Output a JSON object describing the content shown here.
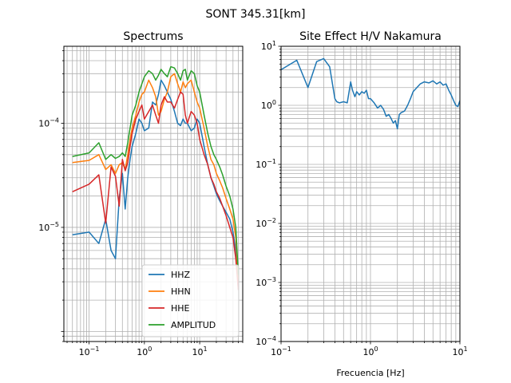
{
  "figure": {
    "title": "SONT 345.31[km]"
  },
  "chart_data": [
    {
      "type": "line",
      "title": "Spectrums",
      "xlabel": "",
      "ylabel": "",
      "xscale": "log",
      "yscale": "log",
      "xlim": [
        0.035,
        60
      ],
      "ylim": [
        8e-07,
        0.00055
      ],
      "grid": true,
      "legend_position": "lower-right",
      "x_tick_labels": [
        {
          "value": 0.1,
          "mantissa": "10",
          "exp": "−1"
        },
        {
          "value": 1,
          "mantissa": "10",
          "exp": "0"
        },
        {
          "value": 10,
          "mantissa": "10",
          "exp": "1"
        }
      ],
      "y_tick_labels": [
        {
          "value": 1e-05,
          "mantissa": "10",
          "exp": "−5"
        },
        {
          "value": 0.0001,
          "mantissa": "10",
          "exp": "−4"
        }
      ],
      "series": [
        {
          "name": "HHZ",
          "color": "#1f77b4",
          "x": [
            0.05,
            0.1,
            0.15,
            0.2,
            0.25,
            0.3,
            0.35,
            0.4,
            0.45,
            0.5,
            0.55,
            0.6,
            0.7,
            0.8,
            0.9,
            1.0,
            1.2,
            1.4,
            1.6,
            1.8,
            2.0,
            2.3,
            2.6,
            3.0,
            3.5,
            4.0,
            4.5,
            5.0,
            5.5,
            6.0,
            7.0,
            8.0,
            9.0,
            10,
            12,
            14,
            16,
            18,
            20,
            23,
            26,
            30,
            35,
            40,
            45,
            50
          ],
          "y": [
            8.5e-06,
            9e-06,
            7e-06,
            1.2e-05,
            6e-06,
            5e-06,
            1.9e-05,
            3.3e-05,
            1.5e-05,
            3e-05,
            4.5e-05,
            6e-05,
            8e-05,
            0.00011,
            0.0001,
            8.5e-05,
            9e-05,
            0.00016,
            0.00015,
            0.00019,
            0.00026,
            0.00023,
            0.0002,
            0.00017,
            0.00013,
            0.0001,
            9.5e-05,
            0.00011,
            0.0001,
            0.0001,
            8.5e-05,
            9e-05,
            0.00011,
            0.0001,
            6e-05,
            4e-05,
            3e-05,
            2.5e-05,
            2.1e-05,
            1.8e-05,
            1.6e-05,
            1.4e-05,
            1.2e-05,
            9e-06,
            6e-06,
            2.5e-06
          ]
        },
        {
          "name": "HHN",
          "color": "#ff7f0e",
          "x": [
            0.05,
            0.1,
            0.15,
            0.2,
            0.25,
            0.3,
            0.35,
            0.4,
            0.45,
            0.5,
            0.55,
            0.6,
            0.7,
            0.8,
            0.9,
            1.0,
            1.2,
            1.4,
            1.6,
            1.8,
            2.0,
            2.3,
            2.6,
            3.0,
            3.5,
            4.0,
            4.5,
            5.0,
            5.5,
            6.0,
            7.0,
            8.0,
            9.0,
            10,
            12,
            14,
            16,
            18,
            20,
            23,
            26,
            30,
            35,
            40,
            45,
            50
          ],
          "y": [
            4.2e-05,
            4.4e-05,
            5e-05,
            3.6e-05,
            4e-05,
            3.3e-05,
            4e-05,
            4.2e-05,
            3.6e-05,
            5e-05,
            7e-05,
            9e-05,
            0.00012,
            0.00016,
            0.00019,
            0.0002,
            0.00026,
            0.00022,
            0.00018,
            0.00012,
            0.00013,
            0.00017,
            0.0002,
            0.00028,
            0.0003,
            0.00024,
            0.0002,
            0.00025,
            0.00022,
            0.00024,
            0.00026,
            0.0002,
            0.00016,
            0.00014,
            9e-05,
            6e-05,
            4.5e-05,
            4e-05,
            3.3e-05,
            2.8e-05,
            2.4e-05,
            1.9e-05,
            1.5e-05,
            1.2e-05,
            8e-06,
            3e-06
          ]
        },
        {
          "name": "HHE",
          "color": "#d62728",
          "x": [
            0.05,
            0.1,
            0.15,
            0.2,
            0.25,
            0.3,
            0.35,
            0.4,
            0.45,
            0.5,
            0.55,
            0.6,
            0.7,
            0.8,
            0.9,
            1.0,
            1.2,
            1.4,
            1.6,
            1.8,
            2.0,
            2.3,
            2.6,
            3.0,
            3.5,
            4.0,
            4.5,
            5.0,
            5.5,
            6.0,
            7.0,
            8.0,
            9.0,
            10,
            12,
            14,
            16,
            18,
            20,
            23,
            26,
            30,
            35,
            40,
            45,
            50
          ],
          "y": [
            2.2e-05,
            2.6e-05,
            3.2e-05,
            1.1e-05,
            3.8e-05,
            3.1e-05,
            1.6e-05,
            4.5e-05,
            3.5e-05,
            4.2e-05,
            6e-05,
            8e-05,
            0.00011,
            0.00013,
            0.00015,
            0.00011,
            0.00013,
            0.00015,
            0.00012,
            0.0001,
            0.00015,
            0.00018,
            0.00016,
            0.00016,
            0.00014,
            0.00017,
            0.0002,
            0.00019,
            0.00012,
            0.0001,
            0.00013,
            0.00012,
            0.0001,
            7e-05,
            5e-05,
            4e-05,
            3e-05,
            2.6e-05,
            2.2e-05,
            1.9e-05,
            1.6e-05,
            1.3e-05,
            1e-05,
            8e-06,
            5e-06,
            2.5e-06
          ]
        },
        {
          "name": "AMPLITUD",
          "color": "#2ca02c",
          "x": [
            0.05,
            0.1,
            0.15,
            0.2,
            0.25,
            0.3,
            0.35,
            0.4,
            0.45,
            0.5,
            0.55,
            0.6,
            0.7,
            0.8,
            0.9,
            1.0,
            1.2,
            1.4,
            1.6,
            1.8,
            2.0,
            2.3,
            2.6,
            3.0,
            3.5,
            4.0,
            4.5,
            5.0,
            5.5,
            6.0,
            7.0,
            8.0,
            9.0,
            10,
            12,
            14,
            16,
            18,
            20,
            23,
            26,
            30,
            35,
            40,
            45,
            50
          ],
          "y": [
            4.8e-05,
            5.2e-05,
            6.5e-05,
            4.5e-05,
            5e-05,
            4.6e-05,
            4.8e-05,
            5.2e-05,
            4.8e-05,
            6.5e-05,
            9e-05,
            0.00012,
            0.00015,
            0.0002,
            0.00024,
            0.00028,
            0.00032,
            0.0003,
            0.00026,
            0.00029,
            0.00033,
            0.0003,
            0.00028,
            0.00035,
            0.00034,
            0.0003,
            0.00026,
            0.00032,
            0.00033,
            0.00026,
            0.00032,
            0.0003,
            0.00023,
            0.0002,
            0.00012,
            8e-05,
            6e-05,
            5e-05,
            4.5e-05,
            3.8e-05,
            3.2e-05,
            2.5e-05,
            2e-05,
            1.5e-05,
            1e-05,
            3.5e-06
          ]
        }
      ]
    },
    {
      "type": "line",
      "title": "Site Effect H/V Nakamura",
      "xlabel": "Frecuencia [Hz]",
      "ylabel": "",
      "xscale": "log",
      "yscale": "log",
      "xlim": [
        0.1,
        10
      ],
      "ylim": [
        0.0001,
        10
      ],
      "grid": true,
      "x_tick_labels": [
        {
          "value": 0.1,
          "mantissa": "10",
          "exp": "−1"
        },
        {
          "value": 1,
          "mantissa": "10",
          "exp": "0"
        },
        {
          "value": 10,
          "mantissa": "10",
          "exp": "1"
        }
      ],
      "y_tick_labels": [
        {
          "value": 0.0001,
          "mantissa": "10",
          "exp": "−4"
        },
        {
          "value": 0.001,
          "mantissa": "10",
          "exp": "−3"
        },
        {
          "value": 0.01,
          "mantissa": "10",
          "exp": "−2"
        },
        {
          "value": 0.1,
          "mantissa": "10",
          "exp": "−1"
        },
        {
          "value": 1,
          "mantissa": "10",
          "exp": "0"
        },
        {
          "value": 10,
          "mantissa": "10",
          "exp": "1"
        }
      ],
      "series": [
        {
          "name": "",
          "color": "#1f77b4",
          "x": [
            0.1,
            0.15,
            0.2,
            0.25,
            0.3,
            0.35,
            0.4,
            0.42,
            0.45,
            0.5,
            0.55,
            0.6,
            0.63,
            0.67,
            0.7,
            0.75,
            0.8,
            0.85,
            0.9,
            0.95,
            1.0,
            1.1,
            1.2,
            1.3,
            1.4,
            1.5,
            1.6,
            1.7,
            1.8,
            1.9,
            2.0,
            2.1,
            2.2,
            2.4,
            2.6,
            2.8,
            3.0,
            3.3,
            3.6,
            4.0,
            4.5,
            5.0,
            5.5,
            6.0,
            6.5,
            7.0,
            7.5,
            8.0,
            8.5,
            9.0,
            9.5,
            10
          ],
          "y": [
            4.0,
            5.8,
            2.0,
            5.5,
            6.2,
            4.5,
            1.3,
            1.15,
            1.1,
            1.15,
            1.1,
            2.5,
            1.8,
            1.4,
            1.7,
            1.5,
            1.7,
            1.6,
            1.8,
            1.3,
            1.3,
            1.1,
            0.9,
            1.0,
            0.85,
            0.65,
            0.7,
            0.6,
            0.5,
            0.55,
            0.4,
            0.7,
            0.75,
            0.8,
            1.0,
            1.3,
            1.7,
            2.0,
            2.3,
            2.5,
            2.4,
            2.6,
            2.3,
            2.5,
            2.2,
            2.3,
            1.8,
            1.5,
            1.2,
            1.0,
            0.95,
            1.2
          ]
        }
      ]
    }
  ]
}
